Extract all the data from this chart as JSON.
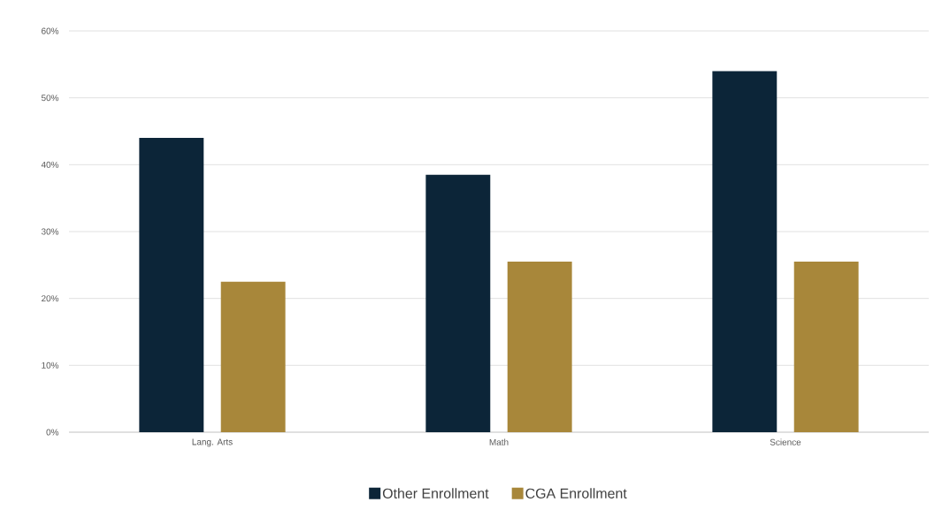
{
  "chart_data": {
    "type": "bar",
    "categories": [
      "Lang. Arts",
      "Math",
      "Science"
    ],
    "series": [
      {
        "name": "Other Enrollment",
        "color": "#0c2538",
        "values": [
          44,
          38.5,
          54
        ]
      },
      {
        "name": "CGA Enrollment",
        "color": "#a8873a",
        "values": [
          22.5,
          25.5,
          25.5
        ]
      }
    ],
    "ylim": [
      0,
      60
    ],
    "yticks": [
      {
        "value": 0,
        "label": "0%"
      },
      {
        "value": 10,
        "label": "10%"
      },
      {
        "value": 20,
        "label": "20%"
      },
      {
        "value": 30,
        "label": "30%"
      },
      {
        "value": 40,
        "label": "40%"
      },
      {
        "value": 50,
        "label": "50%"
      },
      {
        "value": 60,
        "label": "60%"
      }
    ],
    "grid": "y",
    "legend": "bottom"
  }
}
